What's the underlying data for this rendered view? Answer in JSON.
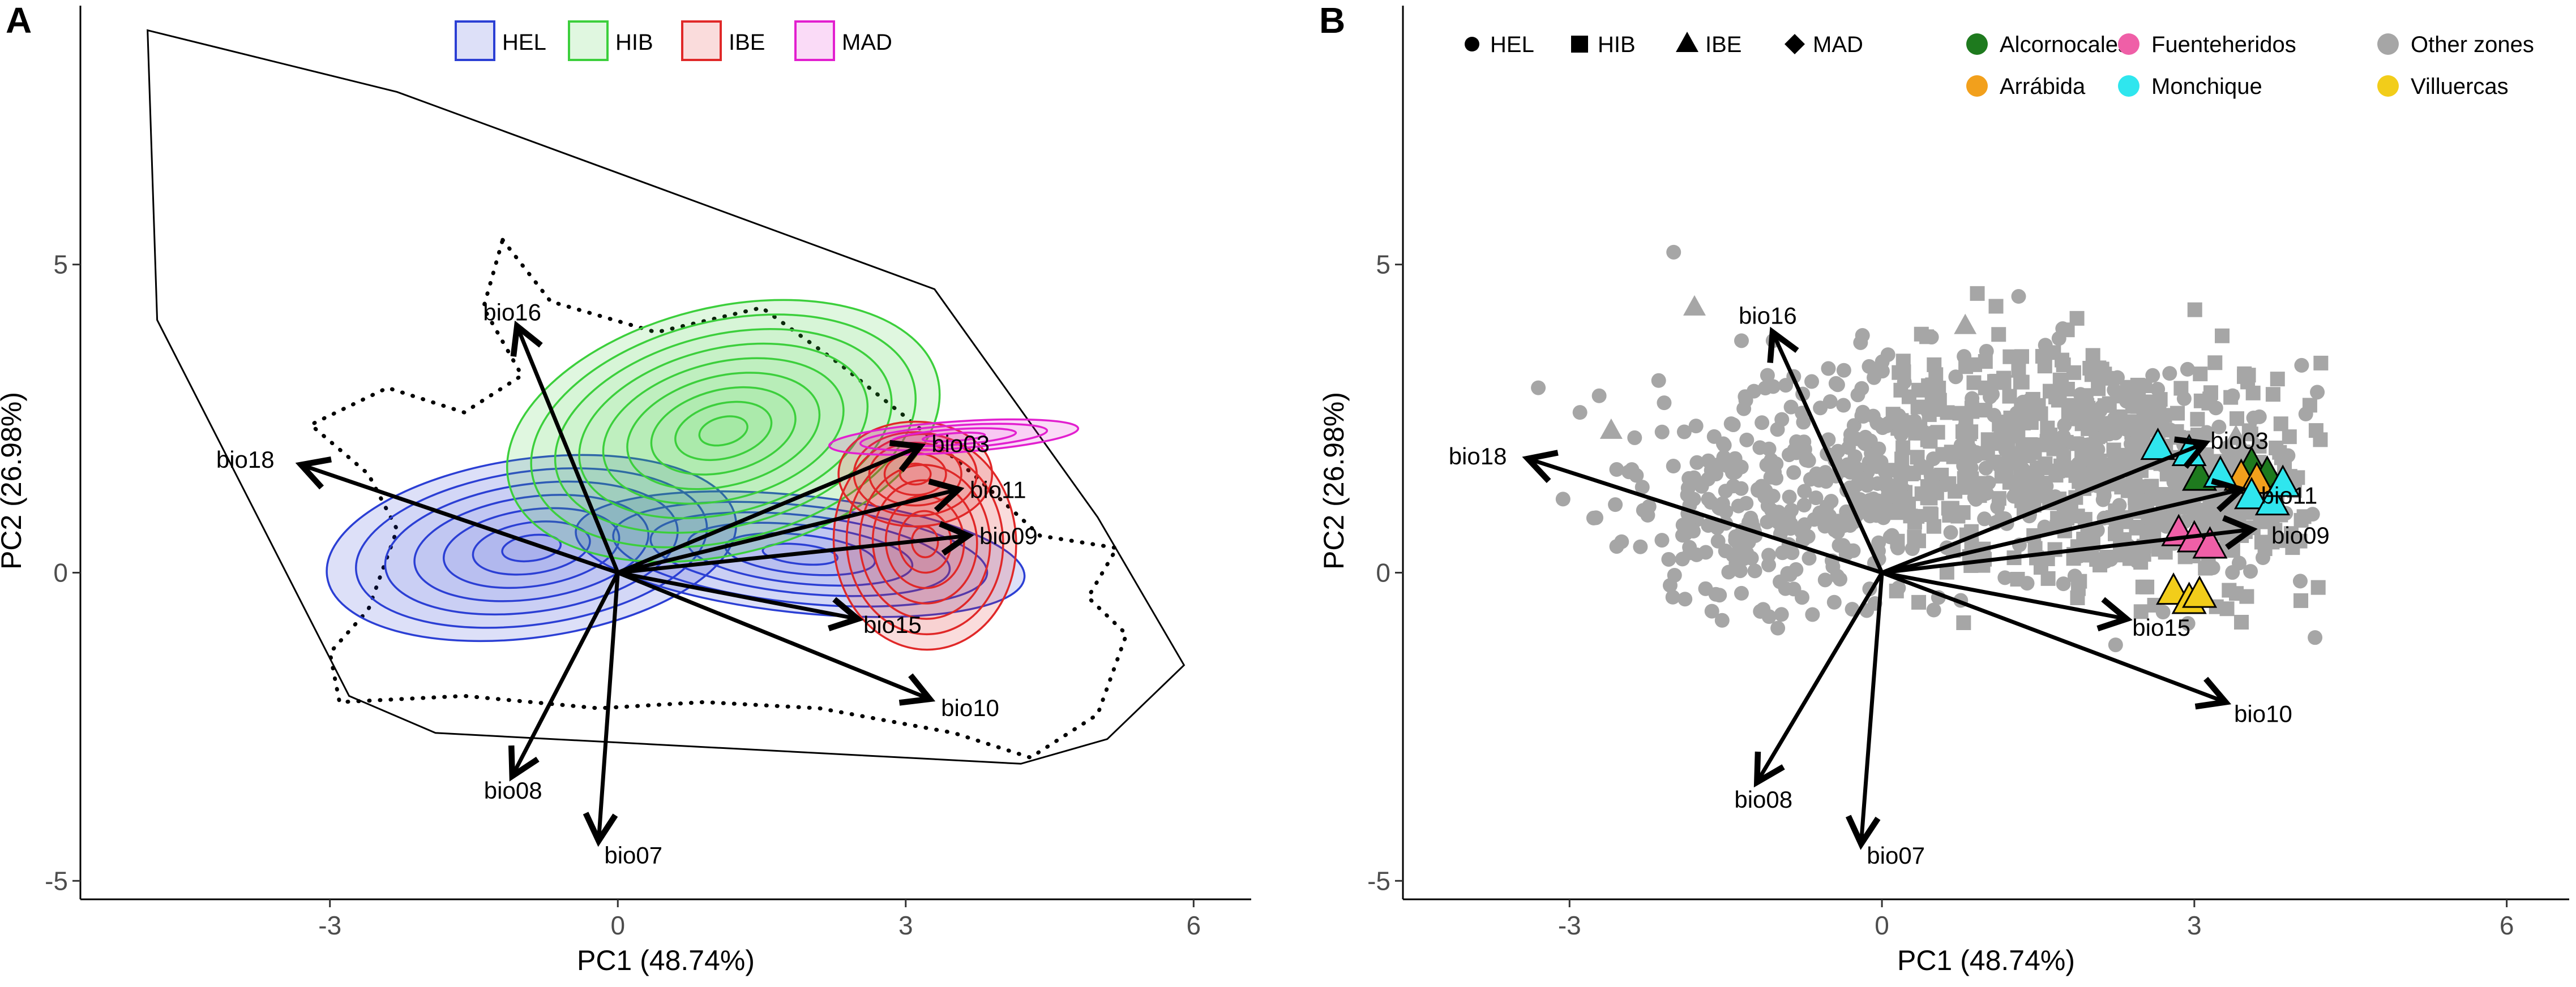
{
  "panels": {
    "a_label": "A",
    "b_label": "B"
  },
  "chart_data": [
    {
      "type": "scatter",
      "panel": "A",
      "xlabel": "PC1 (48.74%)",
      "ylabel": "PC2 (26.98%)",
      "xlim": [
        -5.6,
        6.6
      ],
      "ylim": [
        -5.3,
        9.2
      ],
      "xticks": [
        -3,
        0,
        3,
        6
      ],
      "yticks": [
        -5,
        0,
        5
      ],
      "grid": false,
      "legend_position": "top-center",
      "legend": [
        "HEL",
        "HIB",
        "IBE",
        "MAD"
      ],
      "colors": {
        "HEL": "#2b3fd4",
        "HIB": "#3ccf3c",
        "IBE": "#e02828",
        "MAD": "#e21fcf"
      },
      "density_centers": {
        "HEL": [
          [
            -0.9,
            0.4
          ],
          [
            1.9,
            0.3
          ]
        ],
        "HIB": [
          [
            1.1,
            2.3
          ]
        ],
        "IBE": [
          [
            3.2,
            0.5
          ],
          [
            3.1,
            1.6
          ]
        ],
        "MAD": [
          [
            3.5,
            2.2
          ]
        ]
      },
      "convex_hull": [
        [
          -4.9,
          8.8
        ],
        [
          -2.3,
          7.8
        ],
        [
          3.3,
          4.6
        ],
        [
          5.0,
          0.9
        ],
        [
          5.9,
          -1.5
        ],
        [
          5.1,
          -2.7
        ],
        [
          4.2,
          -3.1
        ],
        [
          -1.9,
          -2.6
        ],
        [
          -2.8,
          -2.0
        ],
        [
          -4.8,
          4.1
        ]
      ],
      "dotted_outline": [
        [
          -1.2,
          5.4
        ],
        [
          -0.7,
          4.4
        ],
        [
          0.4,
          3.9
        ],
        [
          1.5,
          4.3
        ],
        [
          2.3,
          3.4
        ],
        [
          3.1,
          2.4
        ],
        [
          3.7,
          1.6
        ],
        [
          4.4,
          0.6
        ],
        [
          5.2,
          0.4
        ],
        [
          4.9,
          -0.4
        ],
        [
          5.3,
          -1.0
        ],
        [
          5.0,
          -2.3
        ],
        [
          4.3,
          -3.0
        ],
        [
          3.5,
          -2.6
        ],
        [
          2.1,
          -2.2
        ],
        [
          0.9,
          -2.1
        ],
        [
          -0.2,
          -2.2
        ],
        [
          -1.6,
          -2.0
        ],
        [
          -2.9,
          -2.1
        ],
        [
          -3.0,
          -1.3
        ],
        [
          -2.6,
          -0.6
        ],
        [
          -2.3,
          0.7
        ],
        [
          -2.6,
          1.6
        ],
        [
          -3.2,
          2.4
        ],
        [
          -2.4,
          3.0
        ],
        [
          -1.6,
          2.6
        ],
        [
          -1.0,
          3.2
        ],
        [
          -1.4,
          4.3
        ],
        [
          -1.2,
          5.4
        ]
      ],
      "vectors": [
        {
          "name": "bio03",
          "x": 3.15,
          "y": 2.05
        },
        {
          "name": "bio11",
          "x": 3.55,
          "y": 1.35
        },
        {
          "name": "bio09",
          "x": 3.65,
          "y": 0.6
        },
        {
          "name": "bio15",
          "x": 2.5,
          "y": -0.75
        },
        {
          "name": "bio10",
          "x": 3.25,
          "y": -2.05
        },
        {
          "name": "bio07",
          "x": -0.2,
          "y": -4.35
        },
        {
          "name": "bio08",
          "x": -1.1,
          "y": -3.3
        },
        {
          "name": "bio16",
          "x": -1.05,
          "y": 4.0
        },
        {
          "name": "bio18",
          "x": -3.3,
          "y": 1.75
        }
      ]
    },
    {
      "type": "scatter",
      "panel": "B",
      "xlabel": "PC1 (48.74%)",
      "ylabel": "PC2 (26.98%)",
      "xlim": [
        -4.6,
        6.6
      ],
      "ylim": [
        -5.3,
        9.2
      ],
      "xticks": [
        -3,
        0,
        3,
        6
      ],
      "yticks": [
        -5,
        0,
        5
      ],
      "grid": false,
      "legend_position": "top",
      "shape_legend": [
        {
          "label": "HEL",
          "shape": "circle"
        },
        {
          "label": "HIB",
          "shape": "square"
        },
        {
          "label": "IBE",
          "shape": "triangle"
        },
        {
          "label": "MAD",
          "shape": "diamond"
        }
      ],
      "zone_legend": [
        {
          "label": "Alcornocales",
          "color": "#1e7a1e"
        },
        {
          "label": "Arrábida",
          "color": "#f2a01c"
        },
        {
          "label": "Fuenteheridos",
          "color": "#ef5fa7"
        },
        {
          "label": "Monchique",
          "color": "#2fe6ee"
        },
        {
          "label": "Other zones",
          "color": "#a6a6a6"
        },
        {
          "label": "Villuercas",
          "color": "#f2cd1a"
        }
      ],
      "highlighted_points": [
        {
          "zone": "Alcornocales",
          "shape": "triangle",
          "x": 3.05,
          "y": 1.55
        },
        {
          "zone": "Alcornocales",
          "shape": "triangle",
          "x": 3.55,
          "y": 1.75
        },
        {
          "zone": "Alcornocales",
          "shape": "triangle",
          "x": 3.7,
          "y": 1.6
        },
        {
          "zone": "Arrábida",
          "shape": "triangle",
          "x": 3.45,
          "y": 1.55
        },
        {
          "zone": "Arrábida",
          "shape": "triangle",
          "x": 3.6,
          "y": 1.5
        },
        {
          "zone": "Monchique",
          "shape": "triangle",
          "x": 2.65,
          "y": 2.05
        },
        {
          "zone": "Monchique",
          "shape": "triangle",
          "x": 2.95,
          "y": 1.95
        },
        {
          "zone": "Monchique",
          "shape": "triangle",
          "x": 3.25,
          "y": 1.6
        },
        {
          "zone": "Monchique",
          "shape": "triangle",
          "x": 3.55,
          "y": 1.25
        },
        {
          "zone": "Monchique",
          "shape": "triangle",
          "x": 3.75,
          "y": 1.15
        },
        {
          "zone": "Monchique",
          "shape": "triangle",
          "x": 3.85,
          "y": 1.45
        },
        {
          "zone": "Fuenteheridos",
          "shape": "triangle",
          "x": 2.85,
          "y": 0.65
        },
        {
          "zone": "Fuenteheridos",
          "shape": "triangle",
          "x": 3.0,
          "y": 0.55
        },
        {
          "zone": "Fuenteheridos",
          "shape": "triangle",
          "x": 3.15,
          "y": 0.45
        },
        {
          "zone": "Villuercas",
          "shape": "triangle",
          "x": 2.8,
          "y": -0.3
        },
        {
          "zone": "Villuercas",
          "shape": "triangle",
          "x": 2.95,
          "y": -0.45
        },
        {
          "zone": "Villuercas",
          "shape": "triangle",
          "x": 3.05,
          "y": -0.35
        }
      ],
      "vectors": [
        {
          "name": "bio03",
          "x": 3.1,
          "y": 2.1
        },
        {
          "name": "bio11",
          "x": 3.45,
          "y": 1.35
        },
        {
          "name": "bio09",
          "x": 3.55,
          "y": 0.7
        },
        {
          "name": "bio15",
          "x": 2.35,
          "y": -0.75
        },
        {
          "name": "bio10",
          "x": 3.3,
          "y": -2.1
        },
        {
          "name": "bio07",
          "x": -0.2,
          "y": -4.4
        },
        {
          "name": "bio08",
          "x": -1.2,
          "y": -3.4
        },
        {
          "name": "bio16",
          "x": -1.05,
          "y": 3.9
        },
        {
          "name": "bio18",
          "x": -3.4,
          "y": 1.85
        }
      ]
    }
  ]
}
